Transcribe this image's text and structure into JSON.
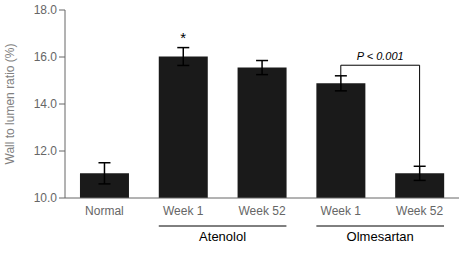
{
  "chart_data": {
    "type": "bar",
    "categories": [
      "Normal",
      "Week 1",
      "Week 52",
      "Week 1",
      "Week 52"
    ],
    "values": [
      11.05,
      16.02,
      15.55,
      14.88,
      11.05
    ],
    "errors": [
      0.45,
      0.38,
      0.3,
      0.32,
      0.3
    ],
    "color": "#1a1a1a",
    "ylim": [
      10.0,
      18.0
    ],
    "yticks": [
      {
        "value": 10.0,
        "label": "10.0"
      },
      {
        "value": 12.0,
        "label": "12.0"
      },
      {
        "value": 14.0,
        "label": "14.0"
      },
      {
        "value": 16.0,
        "label": "16.0"
      },
      {
        "value": 18.0,
        "label": "18.0"
      }
    ],
    "ylabel": "Wall to lumen ratio (%)",
    "annotations": [
      {
        "text": "*",
        "index": 1
      },
      {
        "text": "P < 0.001",
        "from": 3,
        "to": 4
      }
    ],
    "group_labels": [
      {
        "text": "Atenolol",
        "from": 1,
        "to": 2
      },
      {
        "text": "Olmesartan",
        "from": 3,
        "to": 4
      }
    ]
  }
}
